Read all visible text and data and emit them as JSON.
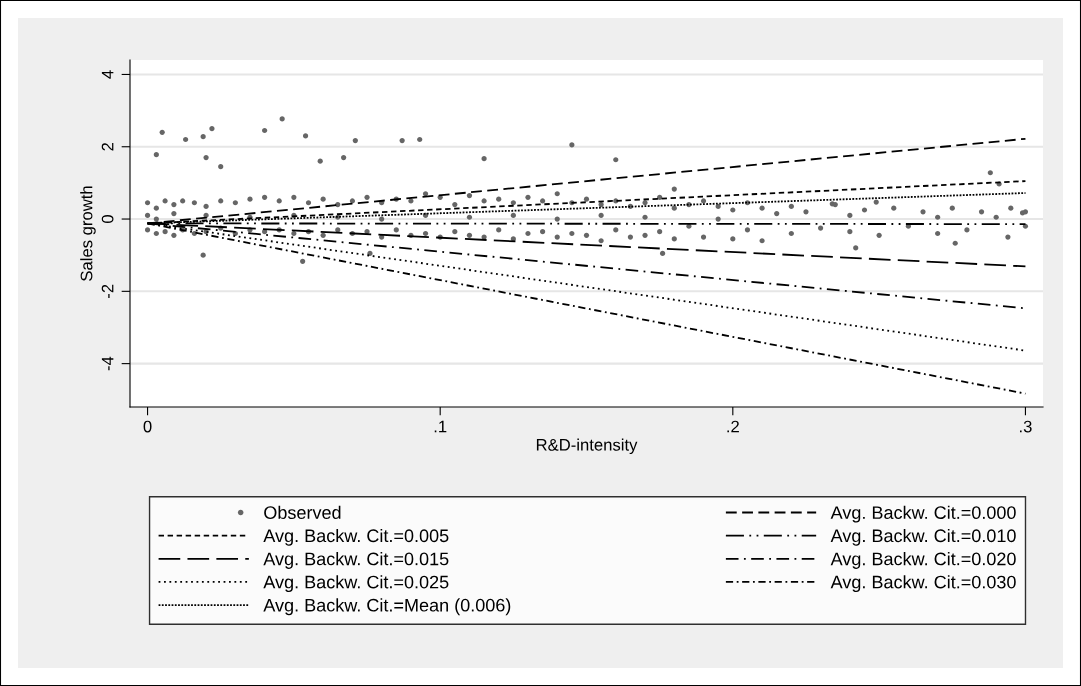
{
  "chart_data": {
    "type": "line",
    "xlabel": "R&D-intensity",
    "ylabel": "Sales growth",
    "xlim": [
      -0.006,
      0.306
    ],
    "ylim": [
      -5.2,
      4.4
    ],
    "xticks": [
      0,
      {
        "value": 0.1,
        "label": ".1"
      },
      {
        "value": 0.2,
        "label": ".2"
      },
      {
        "value": 0.3,
        "label": ".3"
      }
    ],
    "yticks": [
      -4,
      -2,
      0,
      2,
      4
    ],
    "grid": "y",
    "legend": "bottom",
    "series": [
      {
        "name": "Observed",
        "type": "scatter",
        "marker": "circle",
        "color": "#666666",
        "x": [
          0.003,
          0.005,
          0.013,
          0.019,
          0.02,
          0.022,
          0.025,
          0.04,
          0.046,
          0.054,
          0.059,
          0.067,
          0.071,
          0.087,
          0.093,
          0.115,
          0.145,
          0.16,
          0.18,
          0.234,
          0.249,
          0.288,
          0.291,
          0.299,
          0.019,
          0.053,
          0.076,
          0.176,
          0.242,
          0.276,
          0.294,
          0.0,
          0.0,
          0.0,
          0.003,
          0.003,
          0.003,
          0.006,
          0.006,
          0.009,
          0.009,
          0.009,
          0.012,
          0.012,
          0.016,
          0.016,
          0.02,
          0.02,
          0.02,
          0.025,
          0.025,
          0.03,
          0.03,
          0.035,
          0.035,
          0.035,
          0.04,
          0.04,
          0.045,
          0.045,
          0.05,
          0.05,
          0.05,
          0.055,
          0.055,
          0.06,
          0.06,
          0.065,
          0.065,
          0.065,
          0.07,
          0.07,
          0.075,
          0.075,
          0.08,
          0.08,
          0.08,
          0.085,
          0.085,
          0.09,
          0.09,
          0.095,
          0.095,
          0.095,
          0.1,
          0.1,
          0.105,
          0.105,
          0.11,
          0.11,
          0.11,
          0.115,
          0.115,
          0.12,
          0.12,
          0.125,
          0.125,
          0.125,
          0.13,
          0.13,
          0.135,
          0.135,
          0.14,
          0.14,
          0.14,
          0.145,
          0.145,
          0.15,
          0.15,
          0.155,
          0.155,
          0.155,
          0.16,
          0.16,
          0.165,
          0.165,
          0.17,
          0.17,
          0.17,
          0.175,
          0.175,
          0.18,
          0.18,
          0.185,
          0.185,
          0.19,
          0.19,
          0.195,
          0.195,
          0.2,
          0.2,
          0.205,
          0.205,
          0.21,
          0.21,
          0.215,
          0.22,
          0.22,
          0.225,
          0.23,
          0.235,
          0.24,
          0.24,
          0.245,
          0.25,
          0.255,
          0.26,
          0.265,
          0.27,
          0.27,
          0.275,
          0.28,
          0.285,
          0.29,
          0.295,
          0.3,
          0.3
        ],
        "values": [
          1.78,
          2.4,
          2.2,
          2.28,
          1.7,
          2.5,
          1.45,
          2.45,
          2.77,
          2.3,
          1.6,
          1.7,
          2.17,
          2.17,
          2.2,
          1.67,
          2.05,
          1.64,
          0.83,
          0.42,
          0.47,
          1.28,
          0.97,
          0.17,
          -1.0,
          -1.17,
          -0.95,
          -0.95,
          -0.8,
          -0.67,
          -0.5,
          0.45,
          -0.3,
          0.1,
          0.3,
          -0.4,
          0.0,
          0.5,
          -0.35,
          0.4,
          -0.45,
          0.15,
          0.5,
          -0.3,
          0.45,
          -0.4,
          0.35,
          -0.35,
          0.1,
          0.5,
          -0.25,
          0.45,
          -0.4,
          0.55,
          -0.3,
          0.05,
          0.6,
          -0.35,
          0.5,
          -0.3,
          0.6,
          -0.4,
          0.1,
          0.45,
          -0.35,
          0.55,
          -0.45,
          0.4,
          -0.3,
          0.05,
          0.5,
          -0.4,
          0.6,
          -0.35,
          0.45,
          -0.5,
          0.0,
          0.55,
          -0.3,
          0.5,
          -0.45,
          0.7,
          -0.4,
          0.1,
          0.6,
          -0.5,
          0.4,
          -0.35,
          0.65,
          -0.45,
          0.05,
          0.5,
          -0.5,
          0.55,
          -0.3,
          0.45,
          -0.55,
          0.1,
          0.6,
          -0.4,
          0.5,
          -0.35,
          0.7,
          -0.5,
          0.0,
          0.45,
          -0.4,
          0.55,
          -0.45,
          0.4,
          -0.6,
          0.1,
          0.5,
          -0.3,
          0.35,
          -0.5,
          0.45,
          -0.45,
          0.05,
          0.6,
          -0.35,
          0.3,
          -0.55,
          0.4,
          -0.2,
          0.5,
          -0.5,
          0.35,
          0.0,
          0.25,
          -0.55,
          0.45,
          -0.3,
          0.3,
          -0.6,
          0.15,
          0.35,
          -0.4,
          0.2,
          -0.25,
          0.4,
          0.1,
          -0.35,
          0.25,
          -0.45,
          0.3,
          -0.2,
          0.2,
          0.05,
          -0.4,
          0.3,
          -0.3,
          0.2,
          0.05,
          0.3,
          0.2,
          -0.2
        ]
      },
      {
        "name": "Avg. Backw. Cit.=0.000",
        "color": "#000000",
        "line_style": "longdash",
        "x": [
          0,
          0.3
        ],
        "values": [
          -0.12,
          2.22
        ]
      },
      {
        "name": "Avg. Backw. Cit.=0.005",
        "color": "#000000",
        "line_style": "dashed",
        "x": [
          0,
          0.3
        ],
        "values": [
          -0.12,
          1.05
        ]
      },
      {
        "name": "Avg. Backw. Cit.=0.010",
        "color": "#000000",
        "line_style": "longdashdotdot",
        "x": [
          0,
          0.3
        ],
        "values": [
          -0.12,
          -0.14
        ]
      },
      {
        "name": "Avg. Backw. Cit.=0.015",
        "color": "#000000",
        "line_style": "verylongdash",
        "x": [
          0,
          0.3
        ],
        "values": [
          -0.12,
          -1.31
        ]
      },
      {
        "name": "Avg. Backw. Cit.=0.020",
        "color": "#000000",
        "line_style": "dashdot",
        "x": [
          0,
          0.3
        ],
        "values": [
          -0.12,
          -2.47
        ]
      },
      {
        "name": "Avg. Backw. Cit.=0.025",
        "color": "#000000",
        "line_style": "dotted",
        "x": [
          0,
          0.3
        ],
        "values": [
          -0.12,
          -3.64
        ]
      },
      {
        "name": "Avg. Backw. Cit.=0.030",
        "color": "#000000",
        "line_style": "shortdashdot",
        "x": [
          0,
          0.3
        ],
        "values": [
          -0.12,
          -4.83
        ]
      },
      {
        "name": "Avg. Backw. Cit.=Mean (0.006)",
        "color": "#000000",
        "line_style": "densedot",
        "x": [
          0,
          0.3
        ],
        "values": [
          -0.12,
          0.72
        ]
      }
    ]
  }
}
